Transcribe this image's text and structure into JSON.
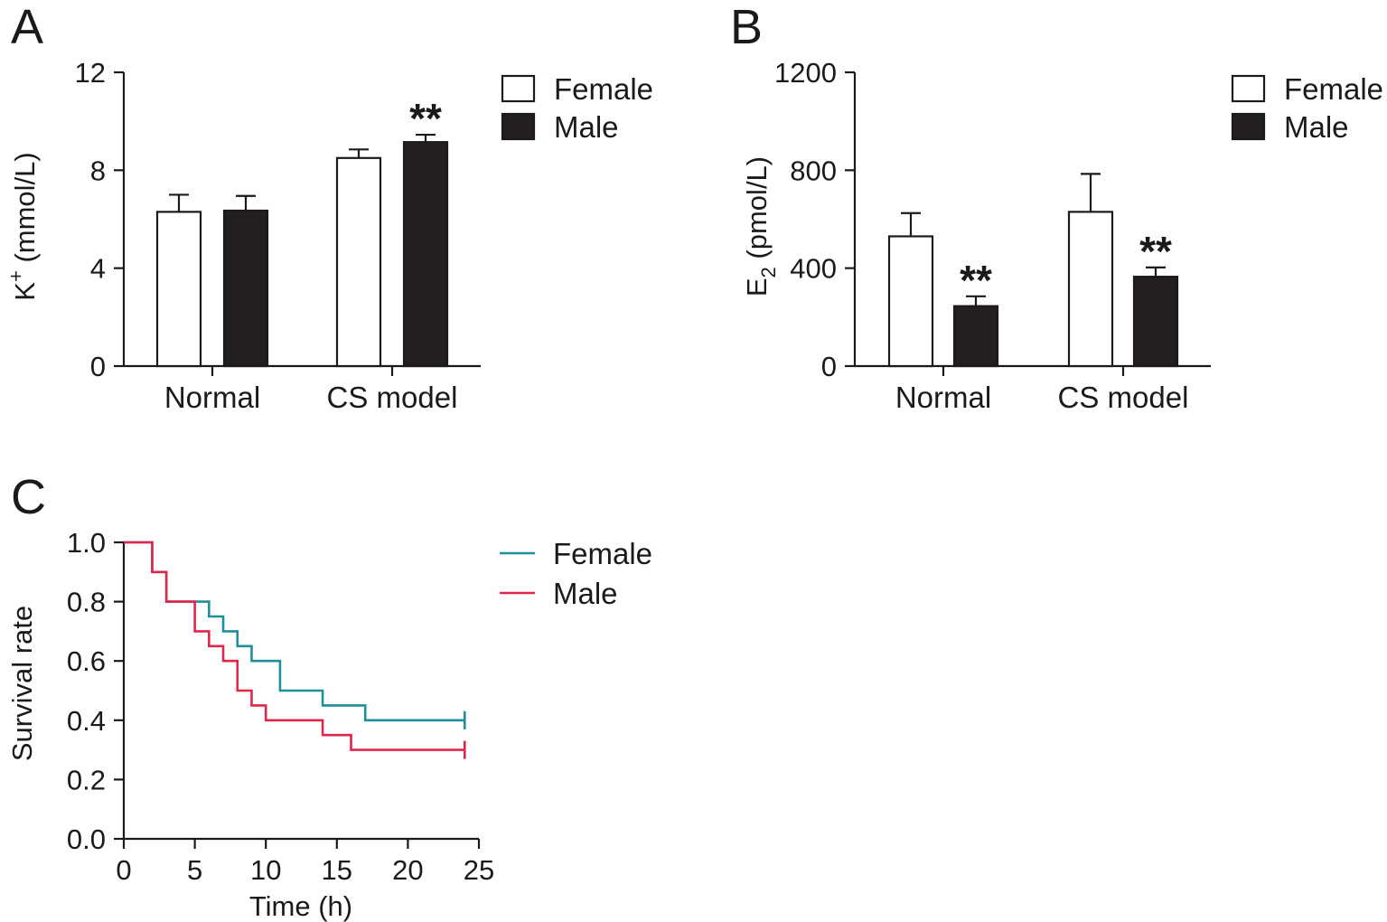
{
  "chart_data": [
    {
      "panel": "A",
      "type": "bar",
      "ylabel_main": "K",
      "ylabel_sup": "+",
      "ylabel_unit": " (mmol/L)",
      "ylim": [
        0,
        12
      ],
      "yticks": [
        0,
        4,
        8,
        12
      ],
      "categories": [
        "Normal",
        "CS model"
      ],
      "series": [
        {
          "name": "Female",
          "color": "#ffffff",
          "values": [
            6.3,
            8.5
          ],
          "errors": [
            0.7,
            0.35
          ]
        },
        {
          "name": "Male",
          "color": "#231f20",
          "values": [
            6.35,
            9.15
          ],
          "errors": [
            0.6,
            0.3
          ]
        }
      ],
      "annotations": [
        {
          "series": 1,
          "category": 1,
          "text": "**"
        }
      ]
    },
    {
      "panel": "B",
      "type": "bar",
      "ylabel_main": "E",
      "ylabel_sub": "2",
      "ylabel_unit": " (pmol/L)",
      "ylim": [
        0,
        1200
      ],
      "yticks": [
        0,
        400,
        800,
        1200
      ],
      "categories": [
        "Normal",
        "CS model"
      ],
      "series": [
        {
          "name": "Female",
          "color": "#ffffff",
          "values": [
            530,
            630
          ],
          "errors": [
            95,
            155
          ]
        },
        {
          "name": "Male",
          "color": "#231f20",
          "values": [
            245,
            365
          ],
          "errors": [
            40,
            38
          ]
        }
      ],
      "annotations": [
        {
          "series": 1,
          "category": 0,
          "text": "**"
        },
        {
          "series": 1,
          "category": 1,
          "text": "**"
        }
      ]
    },
    {
      "panel": "C",
      "type": "line",
      "subtype": "kaplan-meier",
      "xlabel": "Time (h)",
      "ylabel": "Survival rate",
      "xlim": [
        0,
        25
      ],
      "ylim": [
        0,
        1.0
      ],
      "xticks": [
        0,
        5,
        10,
        15,
        20,
        25
      ],
      "yticks": [
        "0.0",
        "0.2",
        "0.4",
        "0.6",
        "0.8",
        "1.0"
      ],
      "series": [
        {
          "name": "Female",
          "color": "#1f8f9a",
          "steps": [
            [
              0,
              1.0
            ],
            [
              2,
              0.9
            ],
            [
              3,
              0.8
            ],
            [
              6,
              0.75
            ],
            [
              7,
              0.7
            ],
            [
              8,
              0.65
            ],
            [
              9,
              0.6
            ],
            [
              11,
              0.5
            ],
            [
              14,
              0.45
            ],
            [
              17,
              0.4
            ]
          ],
          "end": 24
        },
        {
          "name": "Male",
          "color": "#e0264b",
          "steps": [
            [
              0,
              1.0
            ],
            [
              2,
              0.9
            ],
            [
              3,
              0.8
            ],
            [
              5,
              0.7
            ],
            [
              6,
              0.65
            ],
            [
              7,
              0.6
            ],
            [
              8,
              0.5
            ],
            [
              9,
              0.45
            ],
            [
              10,
              0.4
            ],
            [
              14,
              0.35
            ],
            [
              16,
              0.3
            ]
          ],
          "end": 24
        }
      ]
    }
  ]
}
